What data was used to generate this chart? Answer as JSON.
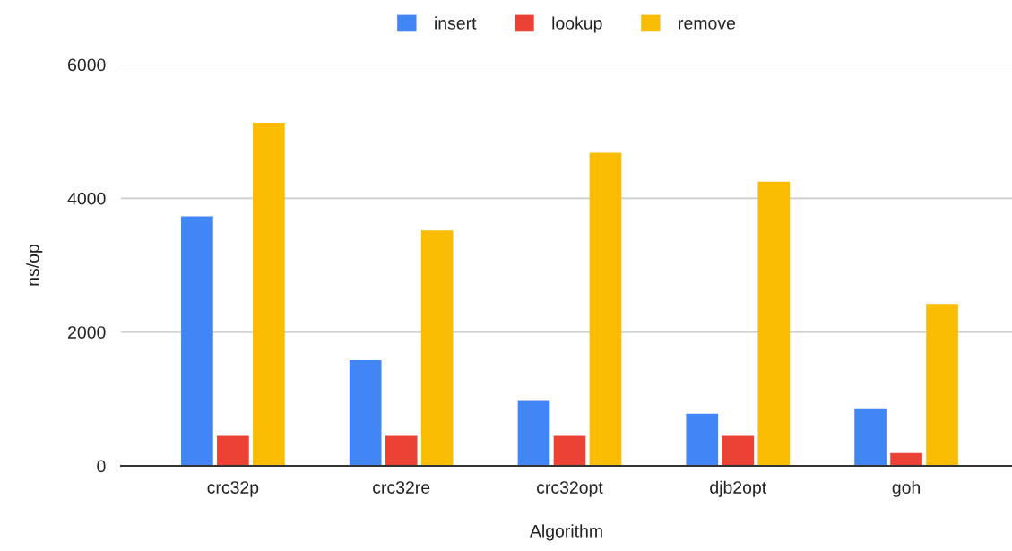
{
  "chart_data": {
    "type": "bar",
    "xlabel": "Algorithm",
    "ylabel": "ns/op",
    "categories": [
      "crc32p",
      "crc32re",
      "crc32opt",
      "djb2opt",
      "goh"
    ],
    "series": [
      {
        "name": "insert",
        "color": "#4285f4",
        "values": [
          3730,
          1580,
          970,
          780,
          860
        ]
      },
      {
        "name": "lookup",
        "color": "#ea4335",
        "values": [
          450,
          450,
          450,
          450,
          190
        ]
      },
      {
        "name": "remove",
        "color": "#fbbc04",
        "values": [
          5130,
          3520,
          4680,
          4250,
          2420
        ]
      }
    ],
    "ylim": [
      0,
      6000
    ],
    "yticks": [
      0,
      2000,
      4000,
      6000
    ],
    "grid": "y",
    "legend": "top"
  }
}
